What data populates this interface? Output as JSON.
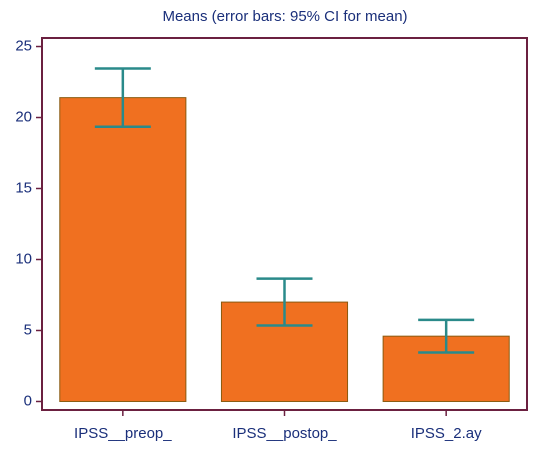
{
  "chart_data": {
    "type": "bar",
    "title": "Means  (error bars: 95% CI for mean)",
    "categories": [
      "IPSS__preop_",
      "IPSS__postop_",
      "IPSS_2.ay"
    ],
    "values": [
      21.4,
      7.0,
      4.6
    ],
    "errors": [
      2.05,
      1.65,
      1.15
    ],
    "color": "#f07020",
    "error_color": "#2a8a8a",
    "ylim": [
      -0.6,
      25.6
    ],
    "yticks": [
      0,
      5,
      10,
      15,
      20,
      25
    ],
    "grid": false
  }
}
